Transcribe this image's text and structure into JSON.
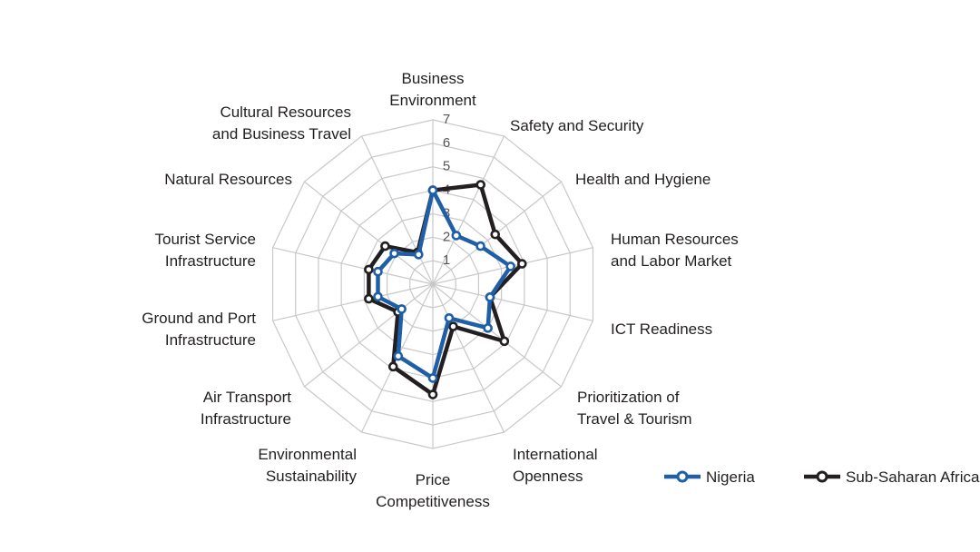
{
  "chart_data": {
    "type": "radar",
    "range": [
      0,
      7
    ],
    "ticks": [
      1,
      2,
      3,
      4,
      5,
      6,
      7
    ],
    "categories": [
      "Business Environment",
      "Safety and Security",
      "Health and Hygiene",
      "Human Resources and Labor Market",
      "ICT Readiness",
      "Prioritization of Travel & Tourism",
      "International Openness",
      "Price Competitiveness",
      "Environmental Sustainability",
      "Air Transport Infrastructure",
      "Ground and Port Infrastructure",
      "Tourist Service Infrastructure",
      "Natural Resources",
      "Cultural Resources and Business Travel"
    ],
    "category_lines": [
      [
        "Business",
        "Environment"
      ],
      [
        "Safety and Security"
      ],
      [
        "Health and Hygiene"
      ],
      [
        "Human Resources",
        "and Labor Market"
      ],
      [
        "ICT Readiness"
      ],
      [
        "Prioritization of",
        "Travel & Tourism"
      ],
      [
        "International",
        "Openness"
      ],
      [
        "Price",
        "Competitiveness"
      ],
      [
        "Environmental",
        "Sustainability"
      ],
      [
        "Air Transport",
        "Infrastructure"
      ],
      [
        "Ground and Port",
        "Infrastructure"
      ],
      [
        "Tourist Service",
        "Infrastructure"
      ],
      [
        "Natural Resources"
      ],
      [
        "Cultural Resources",
        "and Business Travel"
      ]
    ],
    "series": [
      {
        "name": "Nigeria",
        "color": "#1f5fa8",
        "values": [
          4.0,
          2.3,
          2.6,
          3.4,
          2.5,
          3.0,
          1.6,
          4.0,
          3.4,
          1.7,
          2.4,
          2.4,
          2.1,
          1.4
        ]
      },
      {
        "name": "Sub-Saharan Africa",
        "color": "#231f20",
        "values": [
          4.0,
          4.7,
          3.4,
          3.9,
          2.5,
          3.9,
          2.0,
          4.7,
          3.9,
          1.9,
          2.8,
          2.8,
          2.6,
          1.5
        ]
      }
    ],
    "legend": "bottom-right",
    "grid": true
  }
}
